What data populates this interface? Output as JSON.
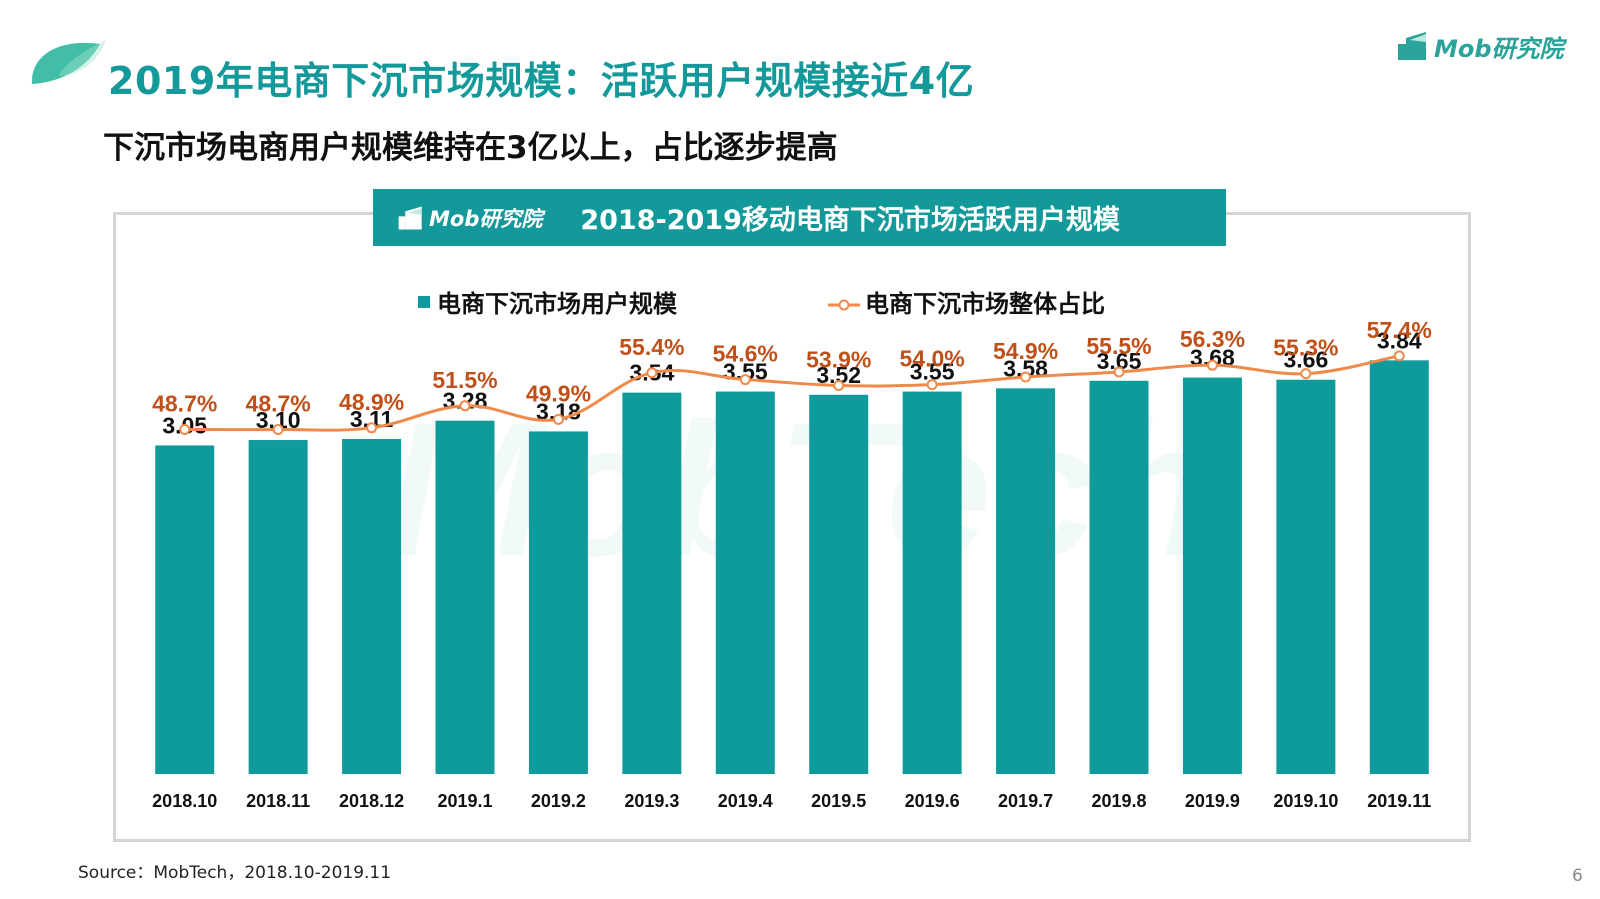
{
  "page": {
    "title": "2019年电商下沉市场规模：活跃用户规模接近4亿",
    "subtitle": "下沉市场电商用户规模维持在3亿以上，占比逐步提高",
    "brand": "Mob研究院",
    "source": "Source：MobTech，2018.10-2019.11",
    "page_number": "6"
  },
  "colors": {
    "accent": "#14999b",
    "bar": "#0f9a9c",
    "line": "#ef8a4a",
    "line_label": "#c0501a",
    "frame": "#d5d5d5"
  },
  "chart_data": {
    "type": "bar",
    "title": "2018-2019移动电商下沉市场活跃用户规模",
    "header_brand": "Mob研究院",
    "categories": [
      "2018.10",
      "2018.11",
      "2018.12",
      "2019.1",
      "2019.2",
      "2019.3",
      "2019.4",
      "2019.5",
      "2019.6",
      "2019.7",
      "2019.8",
      "2019.9",
      "2019.10",
      "2019.11"
    ],
    "series": [
      {
        "name": "电商下沉市场用户规模",
        "type": "bar",
        "values": [
          3.05,
          3.1,
          3.11,
          3.28,
          3.18,
          3.54,
          3.55,
          3.52,
          3.55,
          3.58,
          3.65,
          3.68,
          3.66,
          3.84
        ],
        "labels": [
          "3.05",
          "3.10",
          "3.11",
          "3.28",
          "3.18",
          "3.54",
          "3.55",
          "3.52",
          "3.55",
          "3.58",
          "3.65",
          "3.68",
          "3.66",
          "3.84"
        ]
      },
      {
        "name": "电商下沉市场整体占比",
        "type": "line",
        "values": [
          48.7,
          48.7,
          48.9,
          51.5,
          49.9,
          55.4,
          54.6,
          53.9,
          54.0,
          54.9,
          55.5,
          56.3,
          55.3,
          57.4
        ],
        "labels": [
          "48.7%",
          "48.7%",
          "48.9%",
          "51.5%",
          "49.9%",
          "55.4%",
          "54.6%",
          "53.9%",
          "54.0%",
          "54.9%",
          "55.5%",
          "56.3%",
          "55.3%",
          "57.4%"
        ]
      }
    ],
    "bar_axis_range": [
      0,
      4.4
    ],
    "line_axis_range": [
      8,
      64
    ],
    "grid": false,
    "legend_position": "top"
  }
}
